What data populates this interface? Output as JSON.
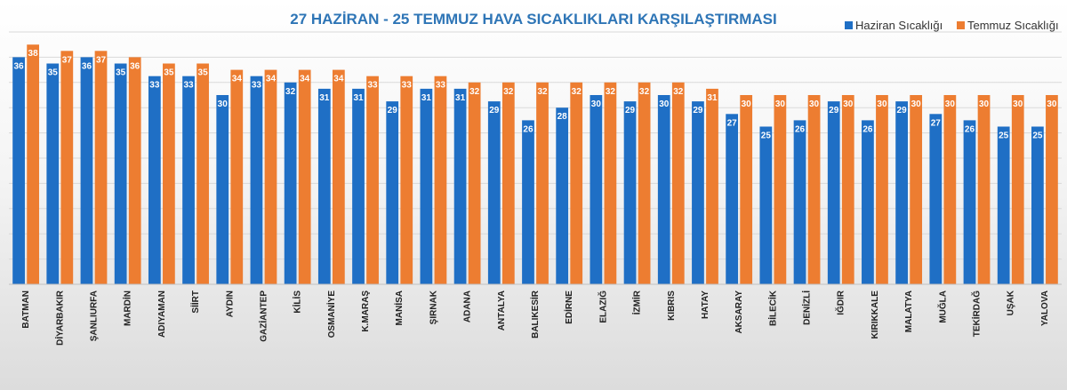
{
  "chart_data": {
    "type": "bar",
    "title": "27 HAZİRAN - 25 TEMMUZ HAVA SICAKLIKLARI KARŞILAŞTIRMASI",
    "legend_position": "top-right",
    "grid": true,
    "ylim": [
      0,
      40
    ],
    "categories": [
      "BATMAN",
      "DİYARBAKIR",
      "ŞANLIURFA",
      "MARDİN",
      "ADIYAMAN",
      "SİİRT",
      "AYDIN",
      "GAZİANTEP",
      "KİLİS",
      "OSMANİYE",
      "K.MARAŞ",
      "MANİSA",
      "ŞIRNAK",
      "ADANA",
      "ANTALYA",
      "BALIKESİR",
      "EDİRNE",
      "ELAZIĞ",
      "İZMİR",
      "KIBRIS",
      "HATAY",
      "AKSARAY",
      "BİLECİK",
      "DENİZLİ",
      "IĞDIR",
      "KIRIKKALE",
      "MALATYA",
      "MUĞLA",
      "TEKİRDAĞ",
      "UŞAK",
      "YALOVA"
    ],
    "series": [
      {
        "name": "Haziran Sıcaklığı",
        "color": "#1f6fc5",
        "values": [
          36,
          35,
          36,
          35,
          33,
          33,
          30,
          33,
          32,
          31,
          31,
          29,
          31,
          31,
          29,
          26,
          28,
          30,
          29,
          30,
          29,
          27,
          25,
          26,
          29,
          26,
          29,
          27,
          26,
          25,
          25
        ]
      },
      {
        "name": "Temmuz Sıcaklığı",
        "color": "#ed7d31",
        "values": [
          38,
          37,
          37,
          36,
          35,
          35,
          34,
          34,
          34,
          34,
          33,
          33,
          33,
          32,
          32,
          32,
          32,
          32,
          32,
          32,
          31,
          30,
          30,
          30,
          30,
          30,
          30,
          30,
          30,
          30,
          30
        ]
      }
    ]
  }
}
